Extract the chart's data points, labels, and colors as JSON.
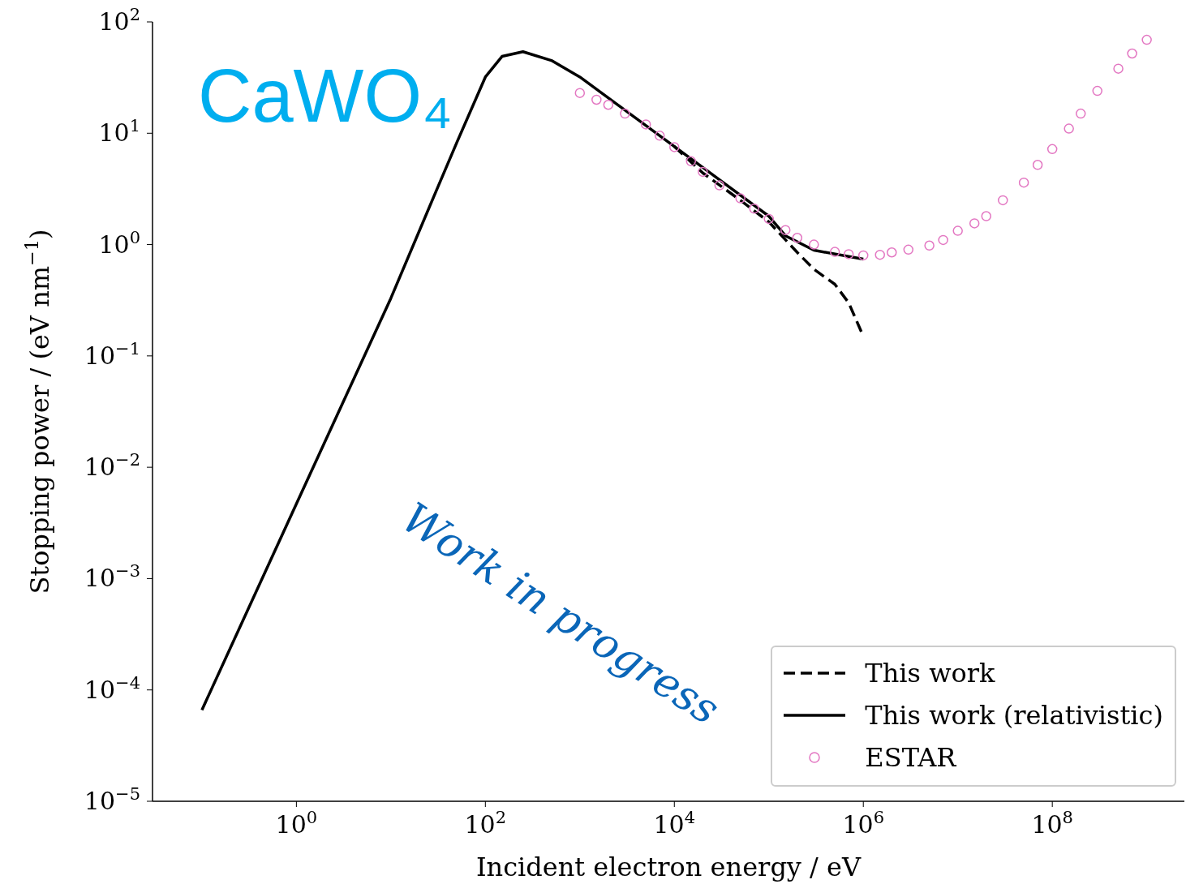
{
  "chart_data": {
    "type": "line",
    "xlabel": "Incident electron energy / eV",
    "ylabel": "Stopping power / (eV nm$^{−1}$)",
    "log": "xy",
    "grid": false,
    "legend": "bottom right",
    "xlim": [
      0.03,
      2500000000.0
    ],
    "ylim": [
      1e-05,
      100
    ],
    "xticks": [
      {
        "value": 1,
        "label": "10$^{0}$"
      },
      {
        "value": 100,
        "label": "10$^{2}$"
      },
      {
        "value": 10000,
        "label": "10$^{4}$"
      },
      {
        "value": 1000000,
        "label": "10$^{6}$"
      },
      {
        "value": 100000000,
        "label": "10$^{8}$"
      }
    ],
    "yticks": [
      {
        "value": 1e-05,
        "label": "10$^{−5}$"
      },
      {
        "value": 0.0001,
        "label": "10$^{−4}$"
      },
      {
        "value": 0.001,
        "label": "10$^{−3}$"
      },
      {
        "value": 0.01,
        "label": "10$^{−2}$"
      },
      {
        "value": 0.1,
        "label": "10$^{−1}$"
      },
      {
        "value": 1,
        "label": "10$^{0}$"
      },
      {
        "value": 10,
        "label": "10$^{1}$"
      },
      {
        "value": 100,
        "label": "10$^{2}$"
      }
    ],
    "annotations": [
      "CaWO₄",
      "Work in progress"
    ],
    "series": [
      {
        "name": "This work",
        "line_style": "dashed",
        "color": "#000000",
        "x": [
          10000,
          20000,
          50000,
          100000,
          200000,
          300000,
          500000,
          700000,
          1000000
        ],
        "values": [
          7.6,
          4.4,
          2.5,
          1.6,
          0.85,
          0.6,
          0.44,
          0.3,
          0.15
        ]
      },
      {
        "name": "This work (relativistic)",
        "line_style": "solid",
        "color": "#000000",
        "x": [
          0.1,
          1,
          10,
          30,
          50,
          100,
          150,
          250,
          500,
          1000,
          10000,
          100000,
          150000,
          300000,
          1000000
        ],
        "values": [
          6.6e-05,
          0.0047,
          0.33,
          3,
          8.3,
          32,
          49,
          54,
          45,
          32,
          7.6,
          1.8,
          1.2,
          0.89,
          0.74
        ]
      },
      {
        "name": "ESTAR",
        "type": "scatter",
        "marker": "circle",
        "color": "#e377c2",
        "x": [
          1000,
          1500,
          2000,
          3000,
          5000,
          7000,
          10000,
          15000,
          20000,
          30000,
          50000,
          70000,
          100000,
          150000,
          200000,
          300000,
          500000,
          700000,
          1000000,
          1500000,
          2000000,
          3000000,
          5000000,
          7000000,
          10000000,
          15000000,
          20000000,
          30000000,
          50000000,
          70000000,
          100000000,
          150000000,
          200000000,
          300000000,
          500000000,
          700000000,
          1000000000
        ],
        "values": [
          23,
          20,
          18,
          15,
          12,
          9.5,
          7.5,
          5.6,
          4.5,
          3.4,
          2.6,
          2.1,
          1.7,
          1.35,
          1.15,
          1,
          0.86,
          0.82,
          0.8,
          0.81,
          0.85,
          0.9,
          0.98,
          1.1,
          1.33,
          1.55,
          1.8,
          2.5,
          3.6,
          5.2,
          7.2,
          11,
          15,
          24,
          38,
          52,
          69
        ]
      }
    ]
  }
}
